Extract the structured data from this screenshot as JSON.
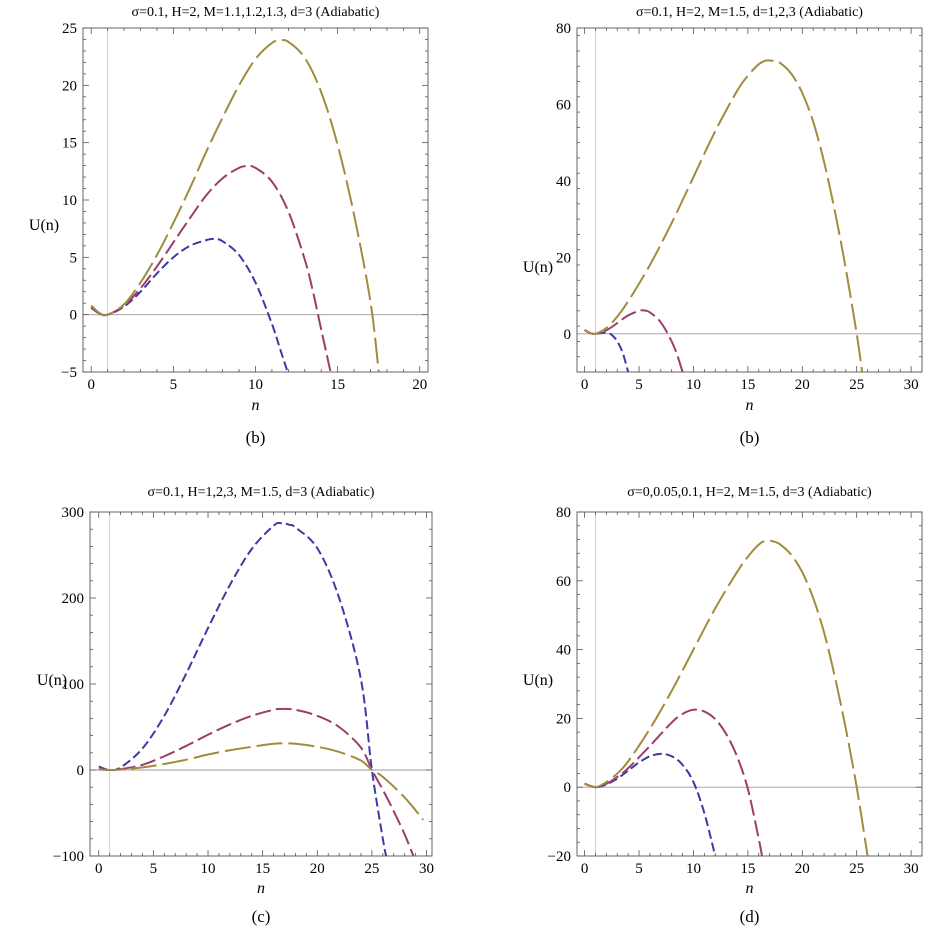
{
  "chart_data": [
    {
      "type": "line",
      "title": "σ=0.1, H=2, M=1.1,1.2,1.3, d=3 (Adiabatic)",
      "xlabel": "n",
      "ylabel": "U(n)",
      "caption": "(b)",
      "xlim": [
        -0.5,
        20.5
      ],
      "ylim": [
        -5,
        25
      ],
      "xticks": [
        "0",
        "5",
        "10",
        "15",
        "20"
      ],
      "yticks": [
        "−5",
        "0",
        "5",
        "10",
        "15",
        "20",
        "25"
      ],
      "grid": false,
      "series": [
        {
          "color": "#3b3ba5",
          "dash": "short",
          "x": [
            0,
            0.5,
            1,
            2,
            3,
            4,
            5,
            6,
            7,
            7.5,
            8,
            9,
            10,
            11,
            11.5,
            12
          ],
          "y": [
            0.6,
            0.1,
            0,
            0.7,
            2.0,
            3.6,
            5.0,
            6.0,
            6.5,
            6.6,
            6.4,
            5.2,
            2.8,
            -0.8,
            -3.0,
            -5.2
          ]
        },
        {
          "color": "#9c3c6e",
          "dash": "medium",
          "x": [
            0,
            0.5,
            1,
            2,
            3,
            4,
            5,
            6,
            7,
            8,
            9,
            9.5,
            10,
            11,
            12,
            13,
            13.5,
            14,
            14.6
          ],
          "y": [
            0.7,
            0.1,
            0,
            0.8,
            2.3,
            4.2,
            6.3,
            8.4,
            10.4,
            11.9,
            12.8,
            12.95,
            12.8,
            11.6,
            9.0,
            4.8,
            2.0,
            -1.3,
            -5.2
          ]
        },
        {
          "color": "#a08c3c",
          "dash": "long",
          "x": [
            0,
            0.5,
            1,
            2,
            3,
            4,
            5,
            6,
            7,
            8,
            9,
            10,
            11,
            11.5,
            12,
            13,
            14,
            15,
            16,
            17,
            17.5
          ],
          "y": [
            0.8,
            0.15,
            0,
            0.9,
            2.8,
            5.2,
            8.0,
            11.0,
            14.2,
            17.2,
            20.0,
            22.3,
            23.7,
            23.9,
            23.8,
            22.4,
            19.4,
            14.8,
            8.7,
            1.1,
            -5.0
          ]
        }
      ]
    },
    {
      "type": "line",
      "title": "σ=0.1, H=2, M=1.5, d=1,2,3 (Adiabatic)",
      "xlabel": "n",
      "ylabel": "U(n)",
      "caption": "(b)",
      "xlim": [
        -0.7,
        31
      ],
      "ylim": [
        -10,
        80
      ],
      "xticks": [
        "0",
        "5",
        "10",
        "15",
        "20",
        "25",
        "30"
      ],
      "yticks": [
        "0",
        "20",
        "40",
        "60",
        "80"
      ],
      "grid": false,
      "series": [
        {
          "color": "#3b3ba5",
          "dash": "short",
          "x": [
            0,
            0.5,
            1,
            1.5,
            2,
            2.5,
            3,
            3.5,
            4
          ],
          "y": [
            1.0,
            0.2,
            0,
            0.2,
            0.3,
            -0.3,
            -2.0,
            -5.0,
            -10.0
          ]
        },
        {
          "color": "#9c3c6e",
          "dash": "medium",
          "x": [
            0,
            0.5,
            1,
            2,
            3,
            4,
            5,
            5.5,
            6,
            7,
            8,
            8.5,
            9
          ],
          "y": [
            1.0,
            0.2,
            0,
            0.9,
            2.8,
            4.8,
            6.0,
            6.1,
            5.6,
            3.0,
            -2.0,
            -5.5,
            -10.0
          ]
        },
        {
          "color": "#a08c3c",
          "dash": "long",
          "x": [
            0,
            0.5,
            1,
            2,
            3,
            4,
            6,
            8,
            10,
            12,
            14,
            15,
            16,
            16.7,
            17.5,
            18,
            19,
            20,
            21,
            22,
            23,
            24,
            25,
            25.5
          ],
          "y": [
            1.0,
            0.2,
            0,
            1.5,
            4.5,
            8.5,
            18.0,
            29.0,
            41.0,
            53.0,
            63.5,
            67.5,
            70.5,
            71.5,
            71.3,
            70.8,
            68.0,
            63.0,
            55.5,
            45.0,
            32.0,
            17.0,
            0,
            -10.0
          ]
        }
      ]
    },
    {
      "type": "line",
      "title": "σ=0.1, H=1,2,3, M=1.5, d=3 (Adiabatic)",
      "xlabel": "n",
      "ylabel": "U(n)",
      "caption": "(c)",
      "xlim": [
        -0.8,
        30.5
      ],
      "ylim": [
        -100,
        300
      ],
      "xticks": [
        "0",
        "5",
        "10",
        "15",
        "20",
        "25",
        "30"
      ],
      "yticks": [
        "−100",
        "0",
        "100",
        "200",
        "300"
      ],
      "grid": false,
      "series": [
        {
          "color": "#3b3ba5",
          "dash": "short",
          "x": [
            0,
            1,
            2,
            4,
            6,
            8,
            10,
            12,
            14,
            16,
            16.7,
            17.5,
            18,
            20,
            22,
            24,
            25,
            26,
            26.3
          ],
          "y": [
            4,
            0,
            3,
            25,
            63,
            112,
            165,
            215,
            257,
            284,
            287,
            285,
            282,
            258,
            200,
            105,
            0,
            -80,
            -100
          ]
        },
        {
          "color": "#9c3c6e",
          "dash": "medium",
          "x": [
            0,
            1,
            2,
            4,
            6,
            8,
            10,
            12,
            14,
            16,
            16.7,
            18,
            20,
            22,
            24,
            25,
            26,
            27,
            28,
            28.8
          ],
          "y": [
            1,
            0,
            1,
            6,
            16,
            28,
            41,
            53,
            63,
            70,
            71,
            70,
            63,
            50,
            26,
            0,
            -23,
            -48,
            -75,
            -100
          ]
        },
        {
          "color": "#a08c3c",
          "dash": "long",
          "x": [
            0,
            1,
            2,
            4,
            6,
            8,
            10,
            12,
            14,
            16,
            16.7,
            18,
            20,
            22,
            24,
            25,
            26,
            28,
            29.7
          ],
          "y": [
            0.5,
            0,
            0.5,
            3,
            7,
            12,
            18,
            23,
            27,
            30.5,
            31,
            30.5,
            27,
            21,
            11,
            0,
            -8,
            -32,
            -58
          ]
        }
      ]
    },
    {
      "type": "line",
      "title": "σ=0,0.05,0.1, H=2, M=1.5, d=3 (Adiabatic)",
      "xlabel": "n",
      "ylabel": "U(n)",
      "caption": "(d)",
      "xlim": [
        -0.7,
        31
      ],
      "ylim": [
        -20,
        80
      ],
      "xticks": [
        "0",
        "5",
        "10",
        "15",
        "20",
        "25",
        "30"
      ],
      "yticks": [
        "−20",
        "0",
        "20",
        "40",
        "60",
        "80"
      ],
      "grid": false,
      "series": [
        {
          "color": "#3b3ba5",
          "dash": "short",
          "x": [
            0,
            1,
            2,
            3,
            4,
            5,
            6,
            7,
            8,
            9,
            10,
            11,
            12
          ],
          "y": [
            1.0,
            0,
            0.8,
            2.5,
            4.8,
            7.2,
            9.0,
            9.7,
            9.0,
            6.5,
            1.5,
            -7.5,
            -20.0
          ]
        },
        {
          "color": "#9c3c6e",
          "dash": "medium",
          "x": [
            0,
            1,
            2,
            3,
            4,
            6,
            8,
            9,
            10,
            11,
            12,
            13,
            14,
            15,
            16,
            16.3
          ],
          "y": [
            1.0,
            0,
            1.0,
            3.0,
            5.5,
            12.0,
            18.8,
            21.3,
            22.5,
            22.0,
            19.8,
            15.5,
            9.0,
            -0.5,
            -15.0,
            -20.0
          ]
        },
        {
          "color": "#a08c3c",
          "dash": "long",
          "x": [
            0,
            1,
            2,
            3,
            4,
            6,
            8,
            10,
            12,
            14,
            15,
            16,
            16.7,
            17.5,
            18,
            19,
            20,
            21,
            22,
            23,
            24,
            25,
            26
          ],
          "y": [
            1.0,
            0,
            1.5,
            4.0,
            7.5,
            17.0,
            28.0,
            40.0,
            52.0,
            62.5,
            67.0,
            70.5,
            71.7,
            71.3,
            70.5,
            67.5,
            62.5,
            55.0,
            45.0,
            32.0,
            17.0,
            0,
            -20.0
          ]
        }
      ]
    }
  ]
}
